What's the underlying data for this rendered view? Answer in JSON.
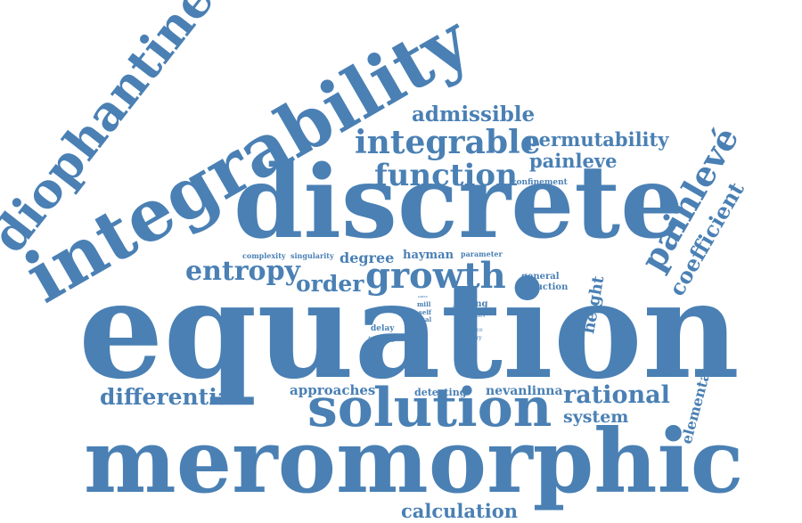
{
  "color": "#4A80B4",
  "words": [
    {
      "key": "equation",
      "text": "equation"
    },
    {
      "key": "meromorphic",
      "text": "meromorphic"
    },
    {
      "key": "discrete",
      "text": "discrete"
    },
    {
      "key": "integrability",
      "text": "integrability"
    },
    {
      "key": "diophantine",
      "text": "diophantine"
    },
    {
      "key": "solution",
      "text": "solution"
    },
    {
      "key": "painleve_accent",
      "text": "painlevé"
    },
    {
      "key": "integrable",
      "text": "integrable"
    },
    {
      "key": "function",
      "text": "function"
    },
    {
      "key": "growth",
      "text": "growth"
    },
    {
      "key": "entropy",
      "text": "entropy"
    },
    {
      "key": "admissible",
      "text": "admissible"
    },
    {
      "key": "permutability",
      "text": "permutability"
    },
    {
      "key": "painleve",
      "text": "painleve"
    },
    {
      "key": "coefficient",
      "text": "coefficient"
    },
    {
      "key": "order",
      "text": "order"
    },
    {
      "key": "differential",
      "text": "differential"
    },
    {
      "key": "rational",
      "text": "rational"
    },
    {
      "key": "calculation",
      "text": "calculation"
    },
    {
      "key": "nevanlinna",
      "text": "nevanlinna"
    },
    {
      "key": "approaches",
      "text": "approaches"
    },
    {
      "key": "system",
      "text": "system"
    },
    {
      "key": "elementary",
      "text": "elementary"
    },
    {
      "key": "height",
      "text": "height"
    },
    {
      "key": "degree",
      "text": "degree"
    },
    {
      "key": "hayman",
      "text": "hayman"
    },
    {
      "key": "detecting",
      "text": "detecting"
    },
    {
      "key": "confinement",
      "text": "confinement"
    },
    {
      "key": "complexity",
      "text": "complexity"
    },
    {
      "key": "singularity",
      "text": "singularity"
    },
    {
      "key": "parameter",
      "text": "parameter"
    },
    {
      "key": "general",
      "text": "general"
    },
    {
      "key": "reduction",
      "text": "reduction"
    },
    {
      "key": "yang",
      "text": "yang"
    },
    {
      "key": "mill",
      "text": "mill"
    },
    {
      "key": "self",
      "text": "self"
    },
    {
      "key": "dual",
      "text": "dual"
    },
    {
      "key": "hyper",
      "text": "hyper"
    },
    {
      "key": "delay",
      "text": "delay"
    },
    {
      "key": "iterate",
      "text": "iterate"
    },
    {
      "key": "choice",
      "text": "choice"
    },
    {
      "key": "theory",
      "text": "theory"
    },
    {
      "key": "painlev_small",
      "text": "painlev"
    },
    {
      "key": "unise",
      "text": "unise"
    },
    {
      "key": "sense",
      "text": "sense"
    },
    {
      "key": "alpha",
      "text": "alpha"
    },
    {
      "key": "held",
      "text": "held"
    },
    {
      "key": "bar",
      "text": "bar"
    }
  ]
}
